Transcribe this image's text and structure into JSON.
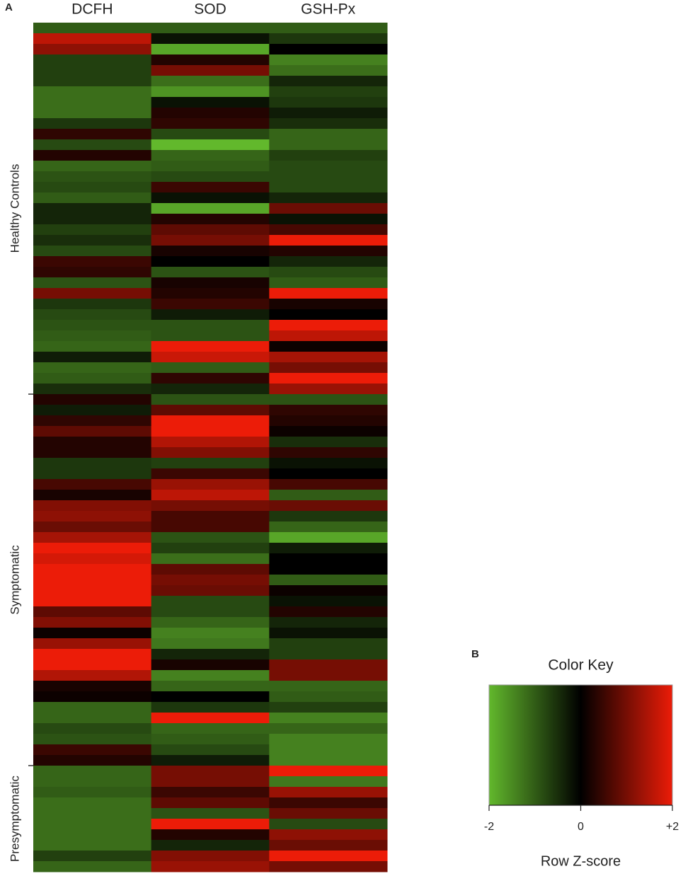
{
  "panel_labels": [
    "A",
    "B"
  ],
  "chart_data": {
    "type": "heatmap",
    "columns": [
      "DCFH",
      "SOD",
      "GSH-Px"
    ],
    "groups": [
      {
        "name": "Healthy Controls",
        "rows": 35
      },
      {
        "name": "Symptomatic",
        "rows": 35
      },
      {
        "name": "Presymptomatic",
        "rows": 10
      }
    ],
    "colors": {
      "low": "#62b82c",
      "mid": "#000000",
      "high": "#ec1c08"
    },
    "values": [
      [
        -1.0,
        -1.0,
        -1.0
      ],
      [
        1.6,
        -0.2,
        -0.6
      ],
      [
        1.2,
        -1.8,
        0.0
      ],
      [
        -0.7,
        0.3,
        -1.4
      ],
      [
        -0.7,
        1.0,
        -1.2
      ],
      [
        -0.7,
        -1.2,
        -0.4
      ],
      [
        -1.2,
        -1.6,
        -0.7
      ],
      [
        -1.2,
        -0.2,
        -0.6
      ],
      [
        -1.2,
        0.3,
        -0.3
      ],
      [
        -0.6,
        0.4,
        -0.5
      ],
      [
        0.4,
        -0.8,
        -1.1
      ],
      [
        -0.8,
        -2.0,
        -1.1
      ],
      [
        0.3,
        -1.1,
        -0.7
      ],
      [
        -1.1,
        -1.0,
        -0.8
      ],
      [
        -0.9,
        -0.8,
        -0.8
      ],
      [
        -0.8,
        0.5,
        -0.8
      ],
      [
        -1.0,
        -0.2,
        -0.4
      ],
      [
        -0.4,
        -1.8,
        0.9
      ],
      [
        -0.4,
        0.3,
        -0.2
      ],
      [
        -0.7,
        0.8,
        0.6
      ],
      [
        -0.5,
        1.0,
        2.0
      ],
      [
        -0.8,
        0.2,
        0.3
      ],
      [
        0.5,
        0.0,
        -0.4
      ],
      [
        0.4,
        -0.9,
        -0.8
      ],
      [
        -0.9,
        0.2,
        -1.0
      ],
      [
        1.0,
        0.3,
        2.0
      ],
      [
        -0.6,
        0.5,
        0.2
      ],
      [
        -0.8,
        -0.3,
        0.0
      ],
      [
        -0.9,
        -0.9,
        2.0
      ],
      [
        -1.0,
        -0.9,
        1.6
      ],
      [
        -1.1,
        2.0,
        0.1
      ],
      [
        -0.3,
        1.7,
        1.4
      ],
      [
        -1.1,
        -1.0,
        1.0
      ],
      [
        -1.0,
        0.4,
        2.0
      ],
      [
        -0.5,
        -0.4,
        1.3
      ],
      [
        0.3,
        -0.9,
        -0.9
      ],
      [
        -0.3,
        0.8,
        0.4
      ],
      [
        0.4,
        2.0,
        0.3
      ],
      [
        0.8,
        2.0,
        0.1
      ],
      [
        0.3,
        1.5,
        -0.5
      ],
      [
        0.3,
        1.1,
        0.4
      ],
      [
        -0.6,
        -0.7,
        -0.2
      ],
      [
        -0.6,
        0.5,
        0.0
      ],
      [
        0.6,
        1.3,
        0.6
      ],
      [
        0.2,
        1.6,
        -1.0
      ],
      [
        1.1,
        1.0,
        0.9
      ],
      [
        1.2,
        0.6,
        -0.6
      ],
      [
        0.9,
        0.6,
        -1.1
      ],
      [
        1.4,
        -0.9,
        -1.8
      ],
      [
        2.0,
        -0.7,
        -0.3
      ],
      [
        1.8,
        -1.2,
        0.0
      ],
      [
        2.0,
        0.8,
        0.0
      ],
      [
        2.0,
        1.0,
        -1.0
      ],
      [
        2.0,
        0.9,
        0.1
      ],
      [
        2.0,
        -0.8,
        -0.2
      ],
      [
        0.8,
        -0.8,
        0.3
      ],
      [
        1.1,
        -1.1,
        -0.4
      ],
      [
        0.1,
        -1.4,
        -0.2
      ],
      [
        1.3,
        -1.3,
        -0.7
      ],
      [
        2.0,
        -0.4,
        -0.7
      ],
      [
        2.0,
        0.2,
        1.0
      ],
      [
        1.5,
        -1.4,
        1.0
      ],
      [
        0.2,
        -1.1,
        -1.1
      ],
      [
        0.1,
        0.0,
        -1.0
      ],
      [
        -1.1,
        -0.6,
        -0.7
      ],
      [
        -1.1,
        2.0,
        -1.4
      ],
      [
        -0.8,
        -1.1,
        -1.1
      ],
      [
        -0.9,
        -1.0,
        -1.4
      ],
      [
        0.5,
        -0.8,
        -1.4
      ],
      [
        0.3,
        -0.3,
        -1.4
      ],
      [
        -1.1,
        1.0,
        2.0
      ],
      [
        -1.1,
        1.0,
        -1.3
      ],
      [
        -1.0,
        0.5,
        1.3
      ],
      [
        -1.2,
        0.8,
        0.5
      ],
      [
        -1.2,
        -0.9,
        0.9
      ],
      [
        -1.2,
        2.0,
        -0.8
      ],
      [
        -1.2,
        0.3,
        1.2
      ],
      [
        -1.2,
        -0.4,
        0.9
      ],
      [
        -0.7,
        1.1,
        2.0
      ],
      [
        -1.1,
        1.3,
        1.0
      ]
    ],
    "colorbar": {
      "title": "Color Key",
      "label": "Row Z-score",
      "lim": [
        -2,
        2
      ],
      "ticks": [
        -2,
        0,
        {
          "value": 2,
          "label": "+2"
        }
      ]
    }
  }
}
